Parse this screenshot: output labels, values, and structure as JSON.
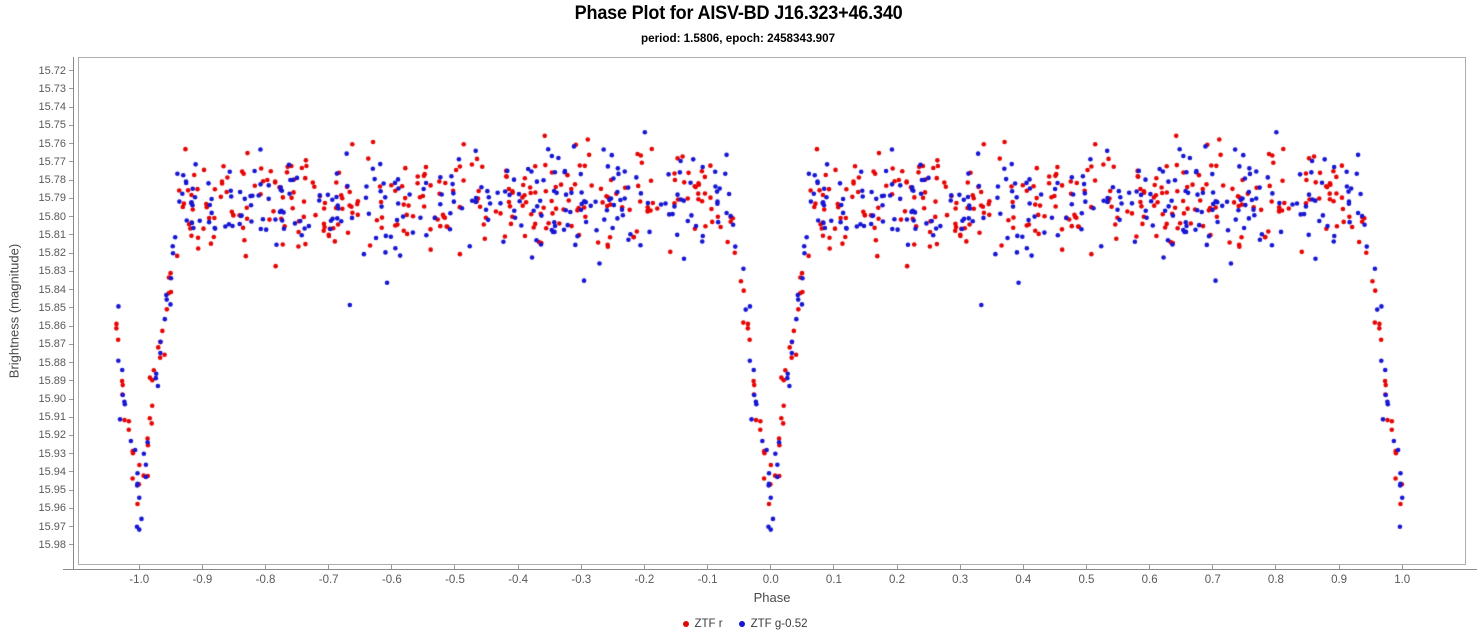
{
  "chart_data": {
    "type": "scatter",
    "title": "Phase Plot for AISV-BD J16.323+46.340",
    "subtitle": "period: 1.5806, epoch: 2458343.907",
    "xlabel": "Phase",
    "ylabel": "Brightness (magnitude)",
    "grid": false,
    "legend_position": "bottom-center",
    "x_tick_labels": [
      "-1.0",
      "-0.9",
      "-0.8",
      "-0.7",
      "-0.6",
      "-0.5",
      "-0.4",
      "-0.3",
      "-0.2",
      "-0.1",
      "0.0",
      "0.1",
      "0.2",
      "0.3",
      "0.4",
      "0.5",
      "0.6",
      "0.7",
      "0.8",
      "0.9",
      "1.0"
    ],
    "y_tick_labels": [
      "15.72",
      "15.73",
      "15.74",
      "15.75",
      "15.76",
      "15.77",
      "15.78",
      "15.79",
      "15.80",
      "15.81",
      "15.82",
      "15.83",
      "15.84",
      "15.85",
      "15.86",
      "15.87",
      "15.88",
      "15.89",
      "15.90",
      "15.91",
      "15.92",
      "15.93",
      "15.94",
      "15.95",
      "15.96",
      "15.97",
      "15.98"
    ],
    "xlim": [
      -1.097,
      1.101
    ],
    "ylim_top_mag": 15.7125,
    "ylim_bottom_mag": 15.991,
    "y_axis_inverted": true,
    "series": [
      {
        "name": "ZTF r",
        "color": "#e60404",
        "marker": "dot",
        "marker_radius_px": 2.3,
        "n_plateau": 285,
        "n_eclipse": 44,
        "seed": 101
      },
      {
        "name": "ZTF g-0.52",
        "color": "#1616d4",
        "marker": "dot",
        "marker_radius_px": 2.3,
        "n_plateau": 252,
        "n_eclipse": 40,
        "seed": 202
      }
    ],
    "light_curve_model": {
      "description": "Eclipsing-binary phase plot; each observation plotted at phase and phase-1; deep narrow primary eclipse at phase 0 and +/-1; flat maximum elsewhere",
      "plateau_phase_range": [
        0.065,
        0.935
      ],
      "plateau_mag_mean": 15.793,
      "plateau_mag_sigma": 0.014,
      "plateau_outlier_rate": 0.04,
      "plateau_outlier_extra_sigma": 0.03,
      "plateau_mag_bright_limit": 15.732,
      "plateau_mag_faint_limit": 15.865,
      "eclipse_center_phase": 0.0,
      "eclipse_half_width": 0.065,
      "eclipse_depth_mag": 0.17,
      "eclipse_shape_exponent": 1.05,
      "eclipse_mag_sigma_base": 0.007,
      "eclipse_mag_sigma_bottom_extra": 0.004,
      "eclipse_min_mag": 15.972,
      "eclipse_branch_concentration": 1.3,
      "phase_fold_offsets": [
        0,
        -1
      ],
      "extra_wrap_threshold": 0.962,
      "extra_wrap_offset": -2,
      "observed_plateau_band": [
        15.75,
        15.84
      ],
      "brightest_point_mag": 15.735,
      "faintest_point_mag": 15.97
    }
  }
}
